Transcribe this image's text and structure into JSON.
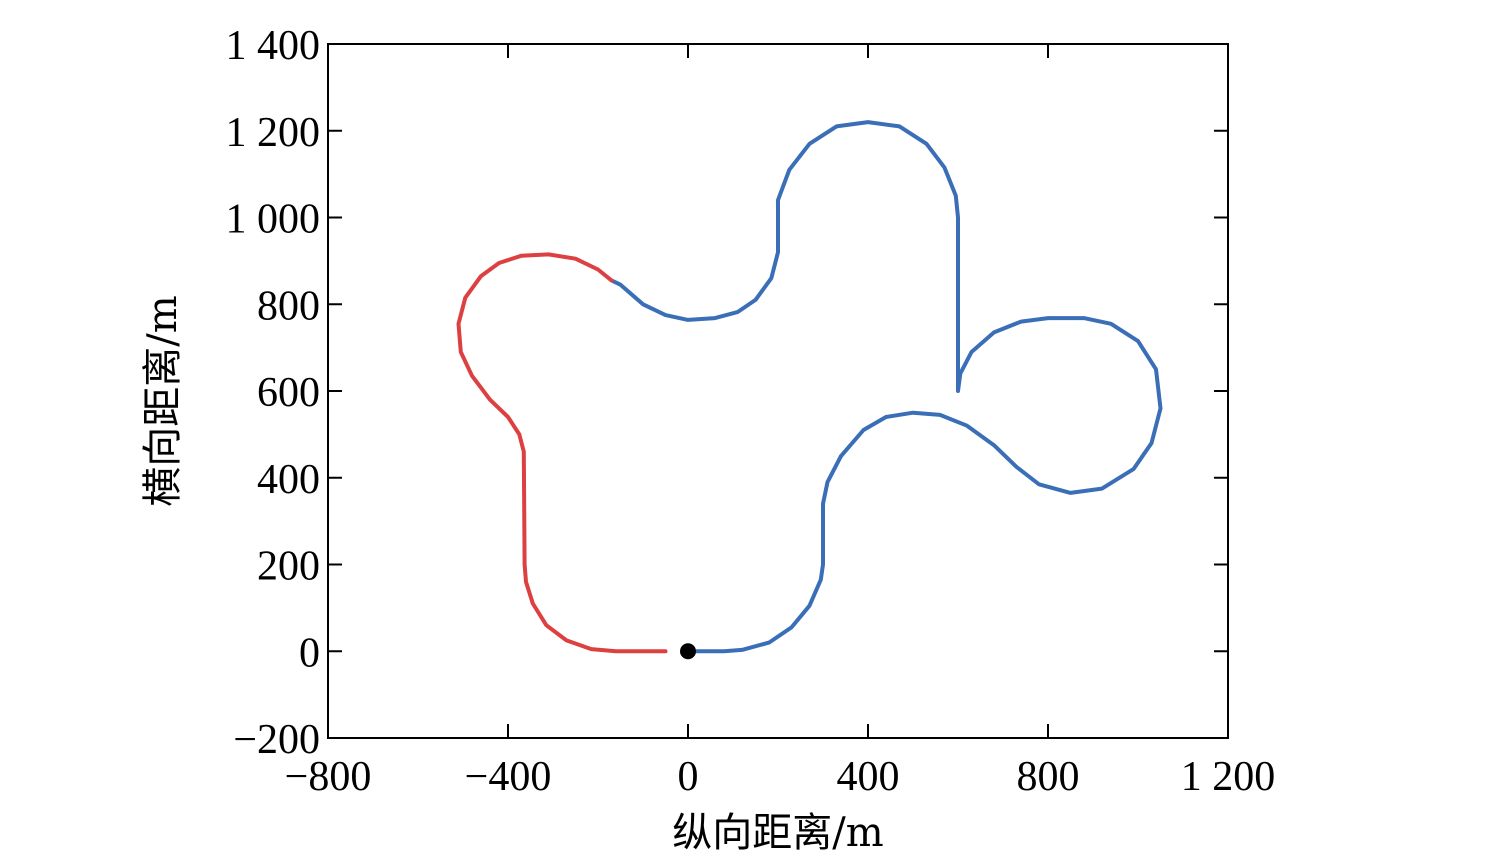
{
  "chart_data": {
    "type": "line",
    "title": "",
    "xlabel": "纵向距离/m",
    "ylabel": "横向距离/m",
    "xlim": [
      -800,
      1200
    ],
    "ylim": [
      -200,
      1400
    ],
    "xticks": [
      -800,
      -400,
      0,
      400,
      800,
      1200
    ],
    "xtick_labels": [
      "−800",
      "−400",
      "0",
      "400",
      "800",
      "1 200"
    ],
    "yticks": [
      -200,
      0,
      200,
      400,
      600,
      800,
      1000,
      1200,
      1400
    ],
    "ytick_labels": [
      "−200",
      "0",
      "200",
      "400",
      "600",
      "800",
      "1 000",
      "1 200",
      "1 400"
    ],
    "grid": false,
    "legend": "none",
    "series": [
      {
        "color": "#3a6fb8",
        "points": [
          [
            0,
            0
          ],
          [
            80,
            0
          ],
          [
            120,
            3
          ],
          [
            180,
            20
          ],
          [
            230,
            55
          ],
          [
            270,
            105
          ],
          [
            295,
            165
          ],
          [
            300,
            200
          ],
          [
            300,
            340
          ],
          [
            310,
            390
          ],
          [
            340,
            450
          ],
          [
            390,
            510
          ],
          [
            440,
            540
          ],
          [
            500,
            550
          ],
          [
            560,
            545
          ],
          [
            620,
            520
          ],
          [
            680,
            475
          ],
          [
            730,
            425
          ],
          [
            780,
            385
          ],
          [
            850,
            365
          ],
          [
            920,
            375
          ],
          [
            990,
            420
          ],
          [
            1030,
            480
          ],
          [
            1050,
            560
          ],
          [
            1040,
            650
          ],
          [
            1000,
            715
          ],
          [
            940,
            755
          ],
          [
            880,
            768
          ],
          [
            800,
            768
          ],
          [
            740,
            760
          ],
          [
            680,
            735
          ],
          [
            630,
            690
          ],
          [
            605,
            640
          ],
          [
            600,
            600
          ],
          [
            600,
            1000
          ],
          [
            595,
            1050
          ],
          [
            570,
            1115
          ],
          [
            530,
            1170
          ],
          [
            470,
            1210
          ],
          [
            400,
            1220
          ],
          [
            330,
            1210
          ],
          [
            270,
            1170
          ],
          [
            225,
            1110
          ],
          [
            200,
            1040
          ],
          [
            200,
            1000
          ],
          [
            200,
            920
          ],
          [
            185,
            860
          ],
          [
            150,
            810
          ],
          [
            110,
            782
          ],
          [
            60,
            768
          ],
          [
            0,
            764
          ],
          [
            -50,
            775
          ],
          [
            -100,
            800
          ],
          [
            -150,
            845
          ],
          [
            -170,
            855
          ]
        ]
      },
      {
        "color": "#dd4040",
        "points": [
          [
            -170,
            855
          ],
          [
            -200,
            880
          ],
          [
            -250,
            905
          ],
          [
            -310,
            915
          ],
          [
            -370,
            912
          ],
          [
            -420,
            895
          ],
          [
            -460,
            865
          ],
          [
            -495,
            815
          ],
          [
            -510,
            755
          ],
          [
            -505,
            690
          ],
          [
            -480,
            635
          ],
          [
            -440,
            580
          ],
          [
            -400,
            540
          ],
          [
            -375,
            500
          ],
          [
            -365,
            460
          ],
          [
            -363,
            200
          ],
          [
            -360,
            160
          ],
          [
            -345,
            110
          ],
          [
            -315,
            60
          ],
          [
            -270,
            25
          ],
          [
            -215,
            5
          ],
          [
            -160,
            0
          ],
          [
            -50,
            0
          ]
        ]
      }
    ],
    "start_point": {
      "x": 0,
      "y": 0,
      "color": "#000000"
    }
  }
}
